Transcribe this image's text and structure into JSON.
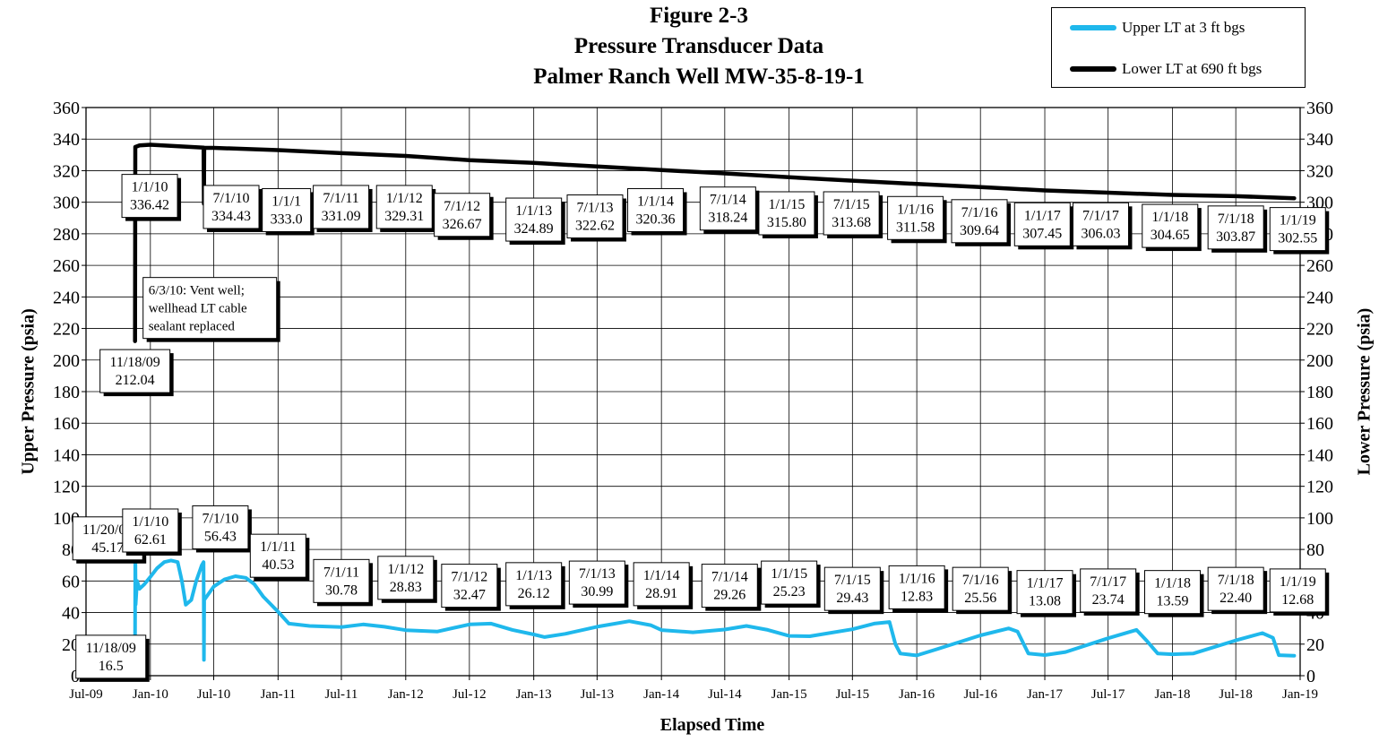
{
  "chart_data": {
    "type": "line",
    "title": [
      "Figure 2-3",
      "Pressure Transducer  Data",
      "Palmer Ranch Well MW-35-8-19-1"
    ],
    "xlabel": "Elapsed Time",
    "ylabel_left": "Upper Pressure (psia)",
    "ylabel_right": "Lower Pressure (psia)",
    "ylim": [
      0,
      360
    ],
    "yticks": [
      "0",
      "20",
      "40",
      "60",
      "80",
      "100",
      "120",
      "140",
      "160",
      "180",
      "200",
      "220",
      "240",
      "260",
      "280",
      "300",
      "320",
      "340",
      "360"
    ],
    "xlim": [
      "2009-07-01",
      "2019-01-01"
    ],
    "xticks": [
      {
        "date": "2009-07-01",
        "label": "Jul-09"
      },
      {
        "date": "2010-01-01",
        "label": "Jan-10"
      },
      {
        "date": "2010-07-01",
        "label": "Jul-10"
      },
      {
        "date": "2011-01-01",
        "label": "Jan-11"
      },
      {
        "date": "2011-07-01",
        "label": "Jul-11"
      },
      {
        "date": "2012-01-01",
        "label": "Jan-12"
      },
      {
        "date": "2012-07-01",
        "label": "Jul-12"
      },
      {
        "date": "2013-01-01",
        "label": "Jan-13"
      },
      {
        "date": "2013-07-01",
        "label": "Jul-13"
      },
      {
        "date": "2014-01-01",
        "label": "Jan-14"
      },
      {
        "date": "2014-07-01",
        "label": "Jul-14"
      },
      {
        "date": "2015-01-01",
        "label": "Jan-15"
      },
      {
        "date": "2015-07-01",
        "label": "Jul-15"
      },
      {
        "date": "2016-01-01",
        "label": "Jan-16"
      },
      {
        "date": "2016-07-01",
        "label": "Jul-16"
      },
      {
        "date": "2017-01-01",
        "label": "Jan-17"
      },
      {
        "date": "2017-07-01",
        "label": "Jul-17"
      },
      {
        "date": "2018-01-01",
        "label": "Jan-18"
      },
      {
        "date": "2018-07-01",
        "label": "Jul-18"
      },
      {
        "date": "2019-01-01",
        "label": "Jan-19"
      }
    ],
    "grid": true,
    "legend_position": "top-right",
    "series": [
      {
        "name": "Upper LT at 3 ft bgs",
        "color": "#1fb8ec",
        "points": [
          [
            "2009-11-18",
            16.5
          ],
          [
            "2009-11-19",
            85
          ],
          [
            "2009-11-20",
            45.17
          ],
          [
            "2009-11-24",
            60
          ],
          [
            "2009-12-01",
            55
          ],
          [
            "2009-12-15",
            58
          ],
          [
            "2010-01-01",
            62.61
          ],
          [
            "2010-01-20",
            68
          ],
          [
            "2010-02-10",
            72
          ],
          [
            "2010-03-01",
            73
          ],
          [
            "2010-03-20",
            72
          ],
          [
            "2010-04-01",
            60
          ],
          [
            "2010-04-12",
            45
          ],
          [
            "2010-04-28",
            48
          ],
          [
            "2010-05-12",
            60
          ],
          [
            "2010-05-28",
            70
          ],
          [
            "2010-06-02",
            72
          ],
          [
            "2010-06-03",
            10
          ],
          [
            "2010-06-04",
            48
          ],
          [
            "2010-07-01",
            56.43
          ],
          [
            "2010-08-01",
            61
          ],
          [
            "2010-09-01",
            63
          ],
          [
            "2010-10-01",
            62
          ],
          [
            "2010-10-25",
            58
          ],
          [
            "2010-11-20",
            50
          ],
          [
            "2011-01-01",
            40.53
          ],
          [
            "2011-02-01",
            33
          ],
          [
            "2011-04-01",
            31.5
          ],
          [
            "2011-07-01",
            30.78
          ],
          [
            "2011-09-01",
            32.5
          ],
          [
            "2011-11-01",
            31
          ],
          [
            "2012-01-01",
            28.83
          ],
          [
            "2012-04-01",
            28
          ],
          [
            "2012-07-01",
            32.47
          ],
          [
            "2012-09-01",
            33
          ],
          [
            "2012-11-01",
            29
          ],
          [
            "2013-01-01",
            26.12
          ],
          [
            "2013-02-01",
            24.5
          ],
          [
            "2013-04-01",
            26.5
          ],
          [
            "2013-07-01",
            30.99
          ],
          [
            "2013-10-01",
            34.5
          ],
          [
            "2013-12-01",
            32
          ],
          [
            "2014-01-01",
            28.91
          ],
          [
            "2014-04-01",
            27.5
          ],
          [
            "2014-07-01",
            29.26
          ],
          [
            "2014-09-01",
            31.5
          ],
          [
            "2014-11-01",
            29
          ],
          [
            "2015-01-01",
            25.23
          ],
          [
            "2015-03-01",
            25
          ],
          [
            "2015-07-01",
            29.43
          ],
          [
            "2015-09-01",
            33
          ],
          [
            "2015-10-15",
            34
          ],
          [
            "2015-11-01",
            20
          ],
          [
            "2015-11-15",
            14
          ],
          [
            "2016-01-01",
            12.83
          ],
          [
            "2016-03-01",
            17
          ],
          [
            "2016-07-01",
            25.56
          ],
          [
            "2016-09-20",
            30
          ],
          [
            "2016-10-15",
            28
          ],
          [
            "2016-11-15",
            14
          ],
          [
            "2017-01-01",
            13.08
          ],
          [
            "2017-03-01",
            15
          ],
          [
            "2017-07-01",
            23.74
          ],
          [
            "2017-09-20",
            29
          ],
          [
            "2017-10-20",
            22
          ],
          [
            "2017-11-20",
            14
          ],
          [
            "2018-01-01",
            13.59
          ],
          [
            "2018-03-01",
            14
          ],
          [
            "2018-07-01",
            22.4
          ],
          [
            "2018-09-15",
            27
          ],
          [
            "2018-10-15",
            24
          ],
          [
            "2018-11-01",
            13
          ],
          [
            "2018-12-15",
            12.68
          ]
        ]
      },
      {
        "name": "Lower LT at 690 ft bgs",
        "color": "#000000",
        "points": [
          [
            "2009-11-18",
            212.04
          ],
          [
            "2009-11-19",
            335
          ],
          [
            "2009-12-01",
            336
          ],
          [
            "2010-01-01",
            336.42
          ],
          [
            "2010-06-02",
            334.6
          ],
          [
            "2010-06-03",
            299
          ],
          [
            "2010-06-04",
            334.5
          ],
          [
            "2010-07-01",
            334.43
          ],
          [
            "2011-01-01",
            333.0
          ],
          [
            "2011-07-01",
            331.09
          ],
          [
            "2012-01-01",
            329.31
          ],
          [
            "2012-07-01",
            326.67
          ],
          [
            "2013-01-01",
            324.89
          ],
          [
            "2013-07-01",
            322.62
          ],
          [
            "2014-01-01",
            320.36
          ],
          [
            "2014-07-01",
            318.24
          ],
          [
            "2015-01-01",
            315.8
          ],
          [
            "2015-07-01",
            313.68
          ],
          [
            "2016-01-01",
            311.58
          ],
          [
            "2016-07-01",
            309.64
          ],
          [
            "2017-01-01",
            307.45
          ],
          [
            "2017-07-01",
            306.03
          ],
          [
            "2018-01-01",
            304.65
          ],
          [
            "2018-07-01",
            303.87
          ],
          [
            "2018-12-15",
            302.55
          ]
        ]
      }
    ],
    "annotations": [
      {
        "lines": [
          "11/18/09",
          "212.04"
        ],
        "date": "2009-11-18",
        "value": 193
      },
      {
        "lines": [
          "1/1/10",
          "336.42"
        ],
        "date": "2009-12-30",
        "value": 304
      },
      {
        "lines": [
          "7/1/10",
          "334.43"
        ],
        "date": "2010-08-20",
        "value": 297
      },
      {
        "lines": [
          "1/1/1",
          "333.0"
        ],
        "date": "2011-01-25",
        "value": 295
      },
      {
        "lines": [
          "7/1/11",
          "331.09"
        ],
        "date": "2011-06-30",
        "value": 297
      },
      {
        "lines": [
          "1/1/12",
          "329.31"
        ],
        "date": "2011-12-28",
        "value": 297
      },
      {
        "lines": [
          "7/1/12",
          "326.67"
        ],
        "date": "2012-06-10",
        "value": 292
      },
      {
        "lines": [
          "1/1/13",
          "324.89"
        ],
        "date": "2013-01-01",
        "value": 289
      },
      {
        "lines": [
          "7/1/13",
          "322.62"
        ],
        "date": "2013-06-25",
        "value": 291
      },
      {
        "lines": [
          "1/1/14",
          "320.36"
        ],
        "date": "2013-12-15",
        "value": 295
      },
      {
        "lines": [
          "7/1/14",
          "318.24"
        ],
        "date": "2014-07-10",
        "value": 296
      },
      {
        "lines": [
          "1/1/15",
          "315.80"
        ],
        "date": "2014-12-25",
        "value": 293
      },
      {
        "lines": [
          "7/1/15",
          "313.68"
        ],
        "date": "2015-06-28",
        "value": 293
      },
      {
        "lines": [
          "1/1/16",
          "311.58"
        ],
        "date": "2015-12-28",
        "value": 290
      },
      {
        "lines": [
          "7/1/16",
          "309.64"
        ],
        "date": "2016-06-28",
        "value": 288
      },
      {
        "lines": [
          "1/1/17",
          "307.45"
        ],
        "date": "2016-12-25",
        "value": 286
      },
      {
        "lines": [
          "7/1/17",
          "306.03"
        ],
        "date": "2017-06-10",
        "value": 286
      },
      {
        "lines": [
          "1/1/18",
          "304.65"
        ],
        "date": "2017-12-25",
        "value": 285
      },
      {
        "lines": [
          "7/1/18",
          "303.87"
        ],
        "date": "2018-07-01",
        "value": 284
      },
      {
        "lines": [
          "1/1/19",
          "302.55"
        ],
        "date": "2018-12-25",
        "value": 283
      },
      {
        "lines": [
          "6/3/10: Vent well;",
          "wellhead LT cable",
          "sealant replaced"
        ],
        "date": "2010-06-20",
        "value": 233,
        "align": "left"
      },
      {
        "lines": [
          "11/18/09",
          "16.5"
        ],
        "date": "2009-09-10",
        "value": 12
      },
      {
        "lines": [
          "11/20/09",
          "45.17"
        ],
        "date": "2009-09-01",
        "value": 87
      },
      {
        "lines": [
          "1/1/10",
          "62.61"
        ],
        "date": "2010-01-01",
        "value": 92
      },
      {
        "lines": [
          "7/1/10",
          "56.43"
        ],
        "date": "2010-07-20",
        "value": 94
      },
      {
        "lines": [
          "1/1/11",
          "40.53"
        ],
        "date": "2011-01-01",
        "value": 76
      },
      {
        "lines": [
          "7/1/11",
          "30.78"
        ],
        "date": "2011-07-01",
        "value": 60
      },
      {
        "lines": [
          "1/1/12",
          "28.83"
        ],
        "date": "2012-01-01",
        "value": 62
      },
      {
        "lines": [
          "7/1/12",
          "32.47"
        ],
        "date": "2012-07-01",
        "value": 57
      },
      {
        "lines": [
          "1/1/13",
          "26.12"
        ],
        "date": "2013-01-01",
        "value": 58
      },
      {
        "lines": [
          "7/1/13",
          "30.99"
        ],
        "date": "2013-07-01",
        "value": 59
      },
      {
        "lines": [
          "1/1/14",
          "28.91"
        ],
        "date": "2014-01-01",
        "value": 58
      },
      {
        "lines": [
          "7/1/14",
          "29.26"
        ],
        "date": "2014-07-15",
        "value": 57
      },
      {
        "lines": [
          "1/1/15",
          "25.23"
        ],
        "date": "2015-01-01",
        "value": 59
      },
      {
        "lines": [
          "7/1/15",
          "29.43"
        ],
        "date": "2015-07-01",
        "value": 55
      },
      {
        "lines": [
          "1/1/16",
          "12.83"
        ],
        "date": "2016-01-01",
        "value": 56
      },
      {
        "lines": [
          "7/1/16",
          "25.56"
        ],
        "date": "2016-07-01",
        "value": 55
      },
      {
        "lines": [
          "1/1/17",
          "13.08"
        ],
        "date": "2017-01-01",
        "value": 53
      },
      {
        "lines": [
          "7/1/17",
          "23.74"
        ],
        "date": "2017-07-01",
        "value": 54
      },
      {
        "lines": [
          "1/1/18",
          "13.59"
        ],
        "date": "2018-01-01",
        "value": 53
      },
      {
        "lines": [
          "7/1/18",
          "22.40"
        ],
        "date": "2018-07-01",
        "value": 55
      },
      {
        "lines": [
          "1/1/19",
          "12.68"
        ],
        "date": "2018-12-25",
        "value": 54
      }
    ]
  }
}
